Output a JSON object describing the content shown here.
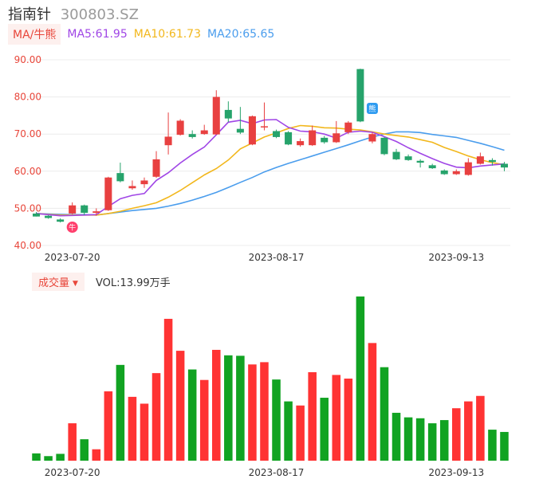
{
  "header": {
    "name": "指南针",
    "code": "300803.SZ"
  },
  "ma_legend": {
    "tag": "MA/牛熊",
    "ma5": "MA5:61.95",
    "ma10": "MA10:61.73",
    "ma20": "MA20:65.65"
  },
  "volume_legend": {
    "tag": "成交量",
    "value": "VOL:13.99万手"
  },
  "markers": {
    "bull": "牛",
    "bear": "熊"
  },
  "colors": {
    "up": "#e84040",
    "down": "#26a36b",
    "vol_up": "#ff3333",
    "vol_down": "#11a322",
    "ma5": "#a046e6",
    "ma10": "#f2b71c",
    "ma20": "#4a9ded",
    "axis_label": "#e8463a"
  },
  "chart_data": [
    {
      "type": "candlestick",
      "y_ticks": [
        "90.00",
        "80.00",
        "70.00",
        "60.00",
        "50.00",
        "40.00"
      ],
      "ylim": [
        40,
        90
      ],
      "x_tick_labels": [
        {
          "index": 3,
          "label": "2023-07-20"
        },
        {
          "index": 20,
          "label": "2023-08-17"
        },
        {
          "index": 35,
          "label": "2023-09-13"
        }
      ],
      "candles": [
        {
          "o": 48.6,
          "h": 49.0,
          "l": 47.8,
          "c": 47.8
        },
        {
          "o": 48.0,
          "h": 48.2,
          "l": 47.2,
          "c": 47.4
        },
        {
          "o": 47.0,
          "h": 47.3,
          "l": 46.2,
          "c": 46.4
        },
        {
          "o": 48.6,
          "h": 51.6,
          "l": 48.4,
          "c": 50.8
        },
        {
          "o": 50.8,
          "h": 51.0,
          "l": 48.2,
          "c": 48.8
        },
        {
          "o": 48.8,
          "h": 50.0,
          "l": 48.0,
          "c": 49.2
        },
        {
          "o": 49.5,
          "h": 58.5,
          "l": 49.3,
          "c": 58.3
        },
        {
          "o": 59.5,
          "h": 62.3,
          "l": 57.0,
          "c": 57.3
        },
        {
          "o": 55.4,
          "h": 57.5,
          "l": 55.0,
          "c": 56.0
        },
        {
          "o": 56.5,
          "h": 58.3,
          "l": 55.5,
          "c": 57.5
        },
        {
          "o": 58.5,
          "h": 65.4,
          "l": 58.2,
          "c": 63.2
        },
        {
          "o": 67.0,
          "h": 75.8,
          "l": 64.5,
          "c": 69.3
        },
        {
          "o": 69.8,
          "h": 74.0,
          "l": 69.6,
          "c": 73.6
        },
        {
          "o": 70.0,
          "h": 71.0,
          "l": 68.8,
          "c": 69.2
        },
        {
          "o": 70.0,
          "h": 72.5,
          "l": 69.8,
          "c": 71.0
        },
        {
          "o": 69.9,
          "h": 81.8,
          "l": 69.8,
          "c": 80.0
        },
        {
          "o": 76.5,
          "h": 78.8,
          "l": 73.2,
          "c": 74.2
        },
        {
          "o": 71.4,
          "h": 77.3,
          "l": 70.0,
          "c": 70.4
        },
        {
          "o": 67.2,
          "h": 75.0,
          "l": 67.0,
          "c": 74.8
        },
        {
          "o": 71.9,
          "h": 78.5,
          "l": 71.0,
          "c": 72.1
        },
        {
          "o": 70.8,
          "h": 71.2,
          "l": 68.9,
          "c": 69.2
        },
        {
          "o": 70.5,
          "h": 70.8,
          "l": 67.0,
          "c": 67.2
        },
        {
          "o": 67.0,
          "h": 68.8,
          "l": 66.6,
          "c": 68.1
        },
        {
          "o": 67.0,
          "h": 72.3,
          "l": 66.8,
          "c": 71.0
        },
        {
          "o": 69.0,
          "h": 69.5,
          "l": 67.4,
          "c": 67.8
        },
        {
          "o": 67.8,
          "h": 73.5,
          "l": 67.6,
          "c": 70.2
        },
        {
          "o": 70.5,
          "h": 73.5,
          "l": 70.0,
          "c": 73.1
        },
        {
          "o": 87.5,
          "h": 87.6,
          "l": 73.2,
          "c": 73.4
        },
        {
          "o": 68.0,
          "h": 70.5,
          "l": 67.5,
          "c": 70.0
        },
        {
          "o": 69.0,
          "h": 69.2,
          "l": 64.3,
          "c": 64.6
        },
        {
          "o": 65.2,
          "h": 66.0,
          "l": 63.0,
          "c": 63.2
        },
        {
          "o": 64.0,
          "h": 64.5,
          "l": 62.8,
          "c": 63.0
        },
        {
          "o": 62.8,
          "h": 63.2,
          "l": 61.0,
          "c": 62.3
        },
        {
          "o": 61.6,
          "h": 62.0,
          "l": 60.6,
          "c": 60.8
        },
        {
          "o": 60.2,
          "h": 60.5,
          "l": 59.0,
          "c": 59.2
        },
        {
          "o": 59.2,
          "h": 60.5,
          "l": 59.0,
          "c": 60.0
        },
        {
          "o": 59.0,
          "h": 63.5,
          "l": 58.8,
          "c": 62.4
        },
        {
          "o": 62.0,
          "h": 65.0,
          "l": 61.8,
          "c": 64.0
        },
        {
          "o": 63.0,
          "h": 63.5,
          "l": 61.5,
          "c": 62.5
        },
        {
          "o": 62.0,
          "h": 62.5,
          "l": 60.0,
          "c": 61.0
        }
      ],
      "ma5": [
        48.6,
        48.3,
        48.0,
        48.1,
        48.2,
        48.3,
        50.5,
        52.6,
        53.5,
        54.0,
        57.5,
        59.6,
        62.2,
        64.5,
        66.5,
        69.8,
        73.2,
        73.7,
        72.8,
        73.8,
        73.9,
        71.8,
        70.8,
        70.6,
        70.0,
        68.9,
        70.5,
        70.8,
        70.5,
        69.3,
        68.0,
        66.3,
        64.8,
        63.4,
        62.1,
        61.1,
        60.9,
        61.4,
        61.7,
        61.95
      ],
      "ma10": [
        48.6,
        48.4,
        48.2,
        48.2,
        48.2,
        48.2,
        48.6,
        49.2,
        50.0,
        50.7,
        51.5,
        53.0,
        54.8,
        56.9,
        59.0,
        60.7,
        63.0,
        66.0,
        67.6,
        69.2,
        70.3,
        71.5,
        72.3,
        72.1,
        71.7,
        71.6,
        71.3,
        71.1,
        70.6,
        70.0,
        69.6,
        69.2,
        68.5,
        67.8,
        66.4,
        65.3,
        64.1,
        63.1,
        62.3,
        61.73
      ],
      "ma20": [
        48.6,
        48.5,
        48.4,
        48.3,
        48.3,
        48.2,
        48.6,
        49.0,
        49.4,
        49.7,
        50.0,
        50.6,
        51.3,
        52.2,
        53.2,
        54.3,
        55.6,
        57.0,
        58.3,
        59.8,
        61.0,
        62.1,
        63.1,
        64.1,
        65.1,
        66.1,
        67.1,
        68.2,
        69.2,
        70.0,
        70.6,
        70.6,
        70.4,
        69.9,
        69.5,
        69.1,
        68.3,
        67.5,
        66.6,
        65.65
      ]
    },
    {
      "type": "bar",
      "series_name": "VOL",
      "values": [
        1.6,
        1.0,
        1.5,
        8.2,
        4.7,
        2.5,
        15.2,
        21.0,
        14.0,
        12.5,
        19.2,
        31.1,
        24.1,
        20.0,
        17.7,
        24.3,
        23.1,
        23.0,
        21.1,
        21.6,
        17.8,
        13.0,
        12.1,
        19.4,
        13.8,
        18.8,
        18.0,
        36.0,
        25.8,
        20.5,
        10.5,
        9.5,
        9.3,
        8.2,
        8.9,
        11.5,
        13.0,
        14.2,
        6.8,
        6.3
      ]
    }
  ]
}
